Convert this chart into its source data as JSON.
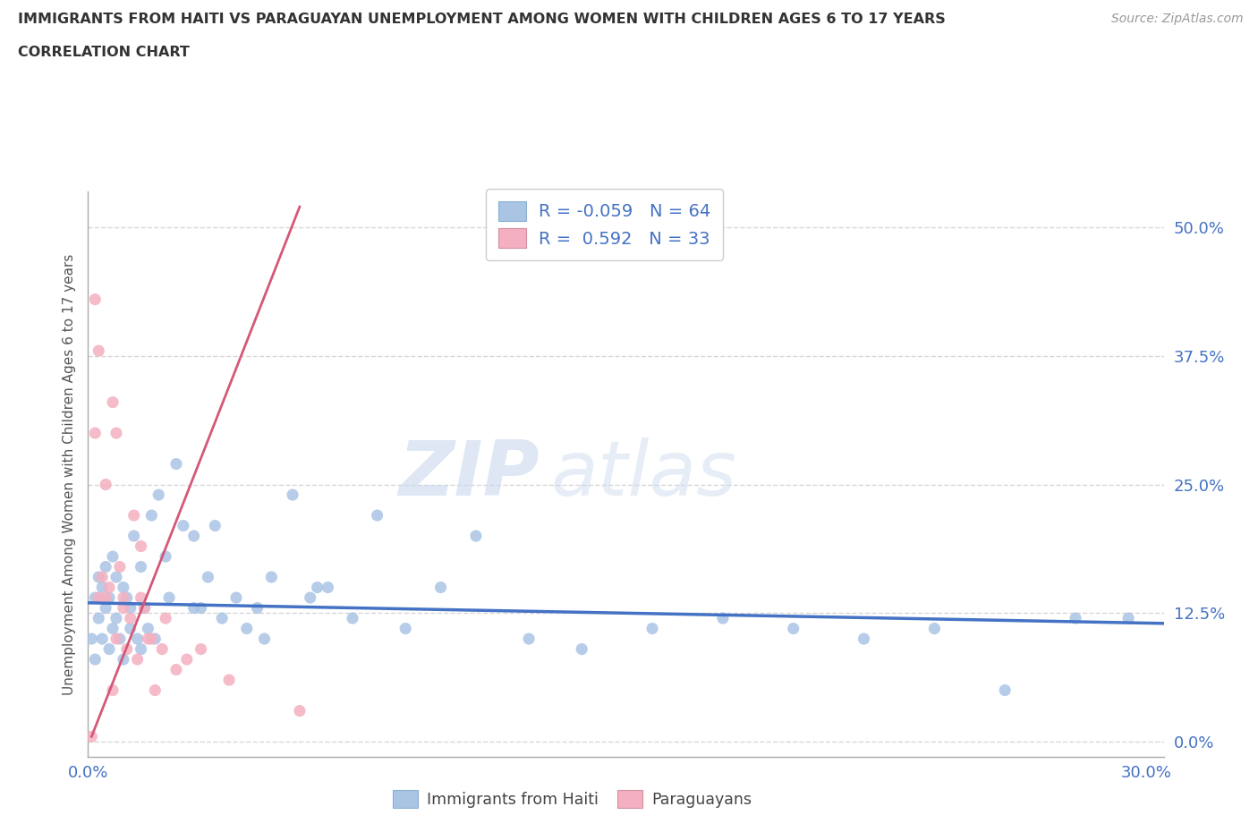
{
  "title_line1": "IMMIGRANTS FROM HAITI VS PARAGUAYAN UNEMPLOYMENT AMONG WOMEN WITH CHILDREN AGES 6 TO 17 YEARS",
  "title_line2": "CORRELATION CHART",
  "source_text": "Source: ZipAtlas.com",
  "watermark_zip": "ZIP",
  "watermark_atlas": "atlas",
  "ylabel": "Unemployment Among Women with Children Ages 6 to 17 years",
  "xlim": [
    0.0,
    0.305
  ],
  "ylim": [
    -0.015,
    0.535
  ],
  "xticks": [
    0.0,
    0.05,
    0.1,
    0.15,
    0.2,
    0.25,
    0.3
  ],
  "xticklabels": [
    "0.0%",
    "",
    "",
    "",
    "",
    "",
    "30.0%"
  ],
  "yticks": [
    0.0,
    0.125,
    0.25,
    0.375,
    0.5
  ],
  "yticklabels": [
    "0.0%",
    "12.5%",
    "25.0%",
    "37.5%",
    "50.0%"
  ],
  "legend_haiti_R": "-0.059",
  "legend_haiti_N": "64",
  "legend_paraguay_R": "0.592",
  "legend_paraguay_N": "33",
  "haiti_color": "#aac4e4",
  "haiti_line_color": "#4472c4",
  "paraguay_color": "#f4afc0",
  "paraguay_line_color": "#d45878",
  "title_color": "#333333",
  "axis_label_color": "#555555",
  "tick_color": "#4472c4",
  "grid_color": "#cccccc",
  "haiti_x": [
    0.001,
    0.002,
    0.002,
    0.003,
    0.003,
    0.004,
    0.004,
    0.005,
    0.005,
    0.006,
    0.006,
    0.007,
    0.007,
    0.008,
    0.008,
    0.009,
    0.01,
    0.01,
    0.011,
    0.012,
    0.012,
    0.013,
    0.014,
    0.015,
    0.015,
    0.016,
    0.017,
    0.018,
    0.019,
    0.02,
    0.022,
    0.023,
    0.025,
    0.027,
    0.03,
    0.032,
    0.034,
    0.036,
    0.038,
    0.042,
    0.045,
    0.048,
    0.052,
    0.058,
    0.063,
    0.068,
    0.075,
    0.082,
    0.09,
    0.1,
    0.11,
    0.125,
    0.14,
    0.16,
    0.18,
    0.2,
    0.22,
    0.24,
    0.26,
    0.28,
    0.295,
    0.03,
    0.05,
    0.065
  ],
  "haiti_y": [
    0.1,
    0.14,
    0.08,
    0.16,
    0.12,
    0.1,
    0.15,
    0.13,
    0.17,
    0.09,
    0.14,
    0.11,
    0.18,
    0.12,
    0.16,
    0.1,
    0.15,
    0.08,
    0.14,
    0.13,
    0.11,
    0.2,
    0.1,
    0.17,
    0.09,
    0.13,
    0.11,
    0.22,
    0.1,
    0.24,
    0.18,
    0.14,
    0.27,
    0.21,
    0.2,
    0.13,
    0.16,
    0.21,
    0.12,
    0.14,
    0.11,
    0.13,
    0.16,
    0.24,
    0.14,
    0.15,
    0.12,
    0.22,
    0.11,
    0.15,
    0.2,
    0.1,
    0.09,
    0.11,
    0.12,
    0.11,
    0.1,
    0.11,
    0.05,
    0.12,
    0.12,
    0.13,
    0.1,
    0.15
  ],
  "paraguay_x": [
    0.001,
    0.002,
    0.002,
    0.003,
    0.003,
    0.004,
    0.005,
    0.005,
    0.006,
    0.007,
    0.007,
    0.008,
    0.008,
    0.009,
    0.01,
    0.01,
    0.011,
    0.012,
    0.013,
    0.014,
    0.015,
    0.015,
    0.016,
    0.017,
    0.018,
    0.019,
    0.021,
    0.022,
    0.025,
    0.028,
    0.032,
    0.04,
    0.06
  ],
  "paraguay_y": [
    0.005,
    0.43,
    0.3,
    0.38,
    0.14,
    0.16,
    0.25,
    0.14,
    0.15,
    0.33,
    0.05,
    0.3,
    0.1,
    0.17,
    0.14,
    0.13,
    0.09,
    0.12,
    0.22,
    0.08,
    0.19,
    0.14,
    0.13,
    0.1,
    0.1,
    0.05,
    0.09,
    0.12,
    0.07,
    0.08,
    0.09,
    0.06,
    0.03
  ],
  "haiti_trend_x": [
    0.0,
    0.305
  ],
  "haiti_trend_y": [
    0.135,
    0.115
  ],
  "paraguay_trend_x": [
    0.001,
    0.06
  ],
  "paraguay_trend_y": [
    0.005,
    0.52
  ],
  "background_color": "#ffffff"
}
